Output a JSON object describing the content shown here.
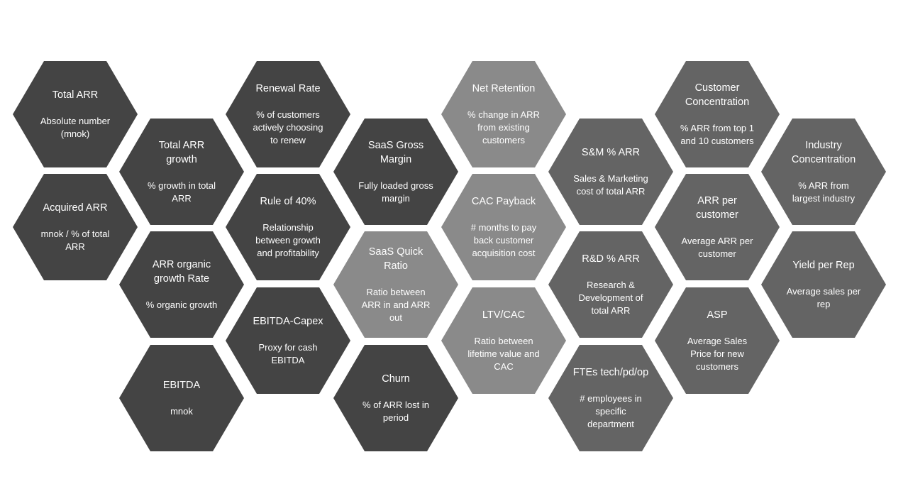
{
  "hexes": [
    {
      "title": "Total ARR",
      "desc": "Absolute number (mnok)"
    },
    {
      "title": "Acquired ARR",
      "desc": "mnok / % of total ARR"
    },
    {
      "title": "Total ARR growth",
      "desc": "% growth in total ARR"
    },
    {
      "title": "ARR organic growth Rate",
      "desc": "% organic growth"
    },
    {
      "title": "EBITDA",
      "desc": "mnok"
    },
    {
      "title": "Renewal Rate",
      "desc": "% of customers actively choosing to renew"
    },
    {
      "title": "Rule of 40%",
      "desc": "Relationship between growth and profitability"
    },
    {
      "title": "EBITDA-Capex",
      "desc": "Proxy for cash EBITDA"
    },
    {
      "title": "SaaS Gross Margin",
      "desc": "Fully loaded gross margin"
    },
    {
      "title": "SaaS Quick Ratio",
      "desc": "Ratio between ARR in and ARR out"
    },
    {
      "title": "Churn",
      "desc": "% of ARR lost in period"
    },
    {
      "title": "Net Retention",
      "desc": "% change in ARR from existing customers"
    },
    {
      "title": "CAC Payback",
      "desc": "# months to pay back customer acquisition cost"
    },
    {
      "title": "LTV/CAC",
      "desc": "Ratio between lifetime value and CAC"
    },
    {
      "title": "S&M % ARR",
      "desc": "Sales & Marketing cost of total ARR"
    },
    {
      "title": "R&D % ARR",
      "desc": "Research & Development of total ARR"
    },
    {
      "title": "FTEs tech/pd/op",
      "desc": "# employees in specific department"
    },
    {
      "title": "Customer Concentration",
      "desc": "% ARR from top 1 and 10 customers"
    },
    {
      "title": "ARR per customer",
      "desc": "Average ARR per customer"
    },
    {
      "title": "ASP",
      "desc": "Average Sales Price for new customers"
    },
    {
      "title": "Industry Concentration",
      "desc": "% ARR from largest industry"
    },
    {
      "title": "Yield per Rep",
      "desc": "Average sales per rep"
    }
  ]
}
